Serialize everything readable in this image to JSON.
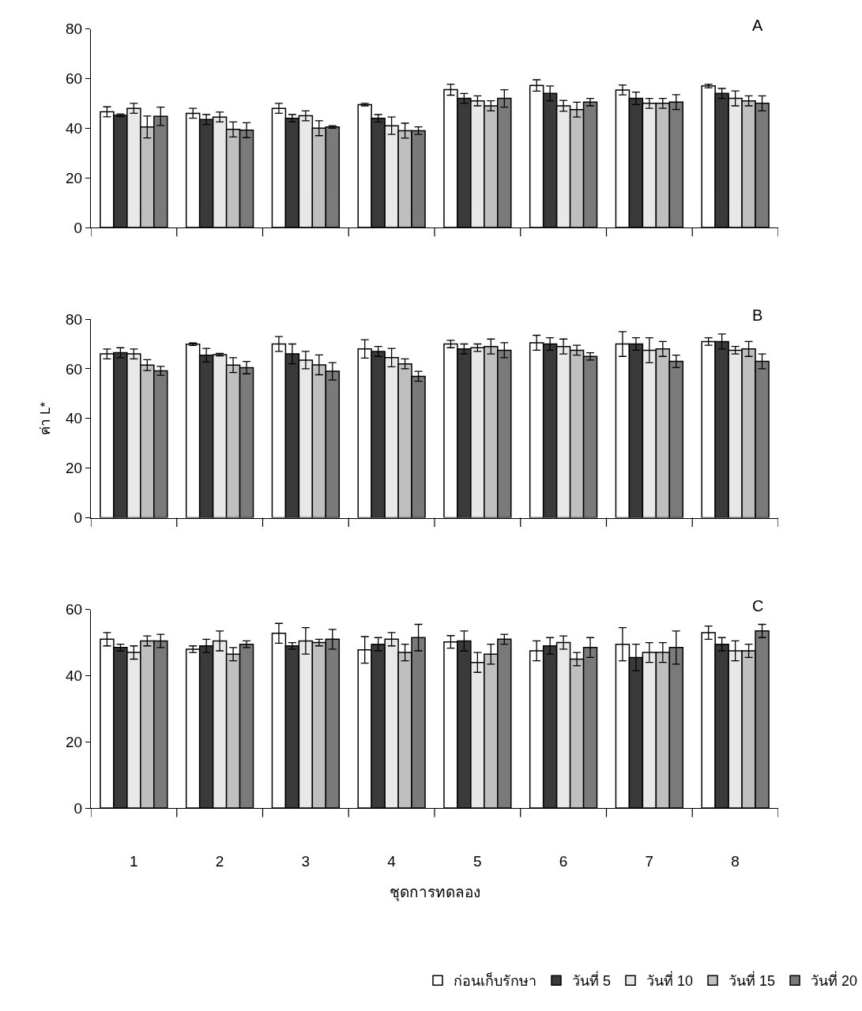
{
  "chart_data": [
    {
      "type": "bar",
      "categories": [
        "1",
        "2",
        "3",
        "4",
        "5",
        "6",
        "7",
        "8"
      ],
      "series": [
        {
          "name": "ก่อนเก็บรักษา",
          "color": "#ffffff",
          "values": [
            46.6,
            46,
            48,
            49.5,
            55.5,
            57.2,
            55.4,
            57
          ],
          "errors": [
            2,
            2,
            2,
            0.5,
            2.2,
            2.3,
            2,
            0.7
          ]
        },
        {
          "name": "วันที่ 5",
          "color": "#3a3a3a",
          "values": [
            45.2,
            43.5,
            44,
            44,
            52,
            54,
            52,
            54
          ],
          "errors": [
            0.5,
            2,
            1.5,
            1.5,
            2,
            3,
            2.5,
            2
          ]
        },
        {
          "name": "วันที่ 10",
          "color": "#e8e8e8",
          "values": [
            48,
            44.5,
            45,
            41,
            51,
            49,
            50,
            52
          ],
          "errors": [
            2,
            2,
            2,
            3.5,
            2,
            2.2,
            2,
            3
          ]
        },
        {
          "name": "วันที่ 15",
          "color": "#bfbfbf",
          "values": [
            40.5,
            39.5,
            40,
            39,
            49,
            47.5,
            50,
            51
          ],
          "errors": [
            4.4,
            3,
            3,
            3,
            2,
            3,
            2,
            2
          ]
        },
        {
          "name": "วันที่ 20",
          "color": "#7a7a7a",
          "values": [
            44.8,
            39.2,
            40.5,
            39,
            52,
            50.5,
            50.5,
            50
          ],
          "errors": [
            3.7,
            3,
            0.5,
            1.5,
            3.5,
            1.5,
            3,
            3
          ]
        }
      ],
      "ylim": [
        0,
        80
      ],
      "yticks": [
        0,
        20,
        40,
        60,
        80
      ],
      "annotations": [
        "A"
      ],
      "tick_labels": "y",
      "legend": "bottom right"
    },
    {
      "type": "bar",
      "categories": [
        "1",
        "2",
        "3",
        "4",
        "5",
        "6",
        "7",
        "8"
      ],
      "ylabel": "ค่า L*",
      "series": [
        {
          "color": "#ffffff",
          "values": [
            66,
            69.9,
            70,
            68,
            70,
            70.5,
            70,
            71
          ],
          "errors": [
            2,
            0.5,
            3,
            3.7,
            1.5,
            3,
            5,
            1.5
          ]
        },
        {
          "color": "#3a3a3a",
          "values": [
            66.5,
            65.5,
            66,
            67,
            68,
            70,
            70,
            71
          ],
          "errors": [
            2,
            2.7,
            4,
            2,
            2,
            2.5,
            2.5,
            3
          ]
        },
        {
          "color": "#e8e8e8",
          "values": [
            66,
            65.7,
            63.5,
            64.5,
            68.5,
            69,
            67.5,
            67.5
          ],
          "errors": [
            2,
            0.5,
            3.5,
            3.7,
            1.5,
            3,
            5,
            1.5
          ]
        },
        {
          "color": "#bfbfbf",
          "values": [
            61.5,
            61.5,
            61.6,
            62,
            69,
            67.5,
            68,
            68
          ],
          "errors": [
            2.2,
            3,
            4,
            2,
            3,
            2,
            3,
            3
          ]
        },
        {
          "color": "#7a7a7a",
          "values": [
            59.2,
            60.5,
            59,
            57,
            67.5,
            65,
            63,
            63
          ],
          "errors": [
            1.8,
            2.5,
            3.5,
            2,
            3,
            1.5,
            2.5,
            3
          ]
        }
      ],
      "ylim": [
        0,
        80
      ],
      "yticks": [
        0,
        20,
        40,
        60,
        80
      ],
      "annotations": [
        "B"
      ],
      "tick_labels": "y"
    },
    {
      "type": "bar",
      "categories": [
        "1",
        "2",
        "3",
        "4",
        "5",
        "6",
        "7",
        "8"
      ],
      "xlabel": "ชุดการทดลอง",
      "series": [
        {
          "color": "#ffffff",
          "values": [
            51,
            48,
            52.8,
            47.8,
            50.2,
            47.5,
            49.5,
            53
          ],
          "errors": [
            2,
            1,
            3,
            4,
            1.9,
            3,
            5,
            2
          ]
        },
        {
          "color": "#3a3a3a",
          "values": [
            48.5,
            49,
            49,
            49.5,
            50.5,
            49,
            45.5,
            49.5
          ],
          "errors": [
            1,
            2,
            1,
            2,
            3,
            2.5,
            4,
            2
          ]
        },
        {
          "color": "#e8e8e8",
          "values": [
            47,
            50.5,
            50.5,
            51,
            44,
            50,
            47,
            47.5
          ],
          "errors": [
            2,
            3,
            4,
            2,
            3,
            2,
            3,
            3
          ]
        },
        {
          "color": "#bfbfbf",
          "values": [
            50.5,
            46.5,
            50,
            47,
            46.5,
            45,
            47,
            47.5
          ],
          "errors": [
            1.5,
            2,
            1,
            2.5,
            3,
            2,
            3,
            2
          ]
        },
        {
          "color": "#7a7a7a",
          "values": [
            50.5,
            49.5,
            51,
            51.5,
            51,
            48.5,
            48.5,
            53.5
          ],
          "errors": [
            2,
            1,
            3,
            4,
            1.5,
            3,
            5,
            2
          ]
        }
      ],
      "ylim": [
        0,
        60
      ],
      "yticks": [
        0,
        20,
        40,
        60
      ],
      "annotations": [
        "C"
      ]
    }
  ]
}
